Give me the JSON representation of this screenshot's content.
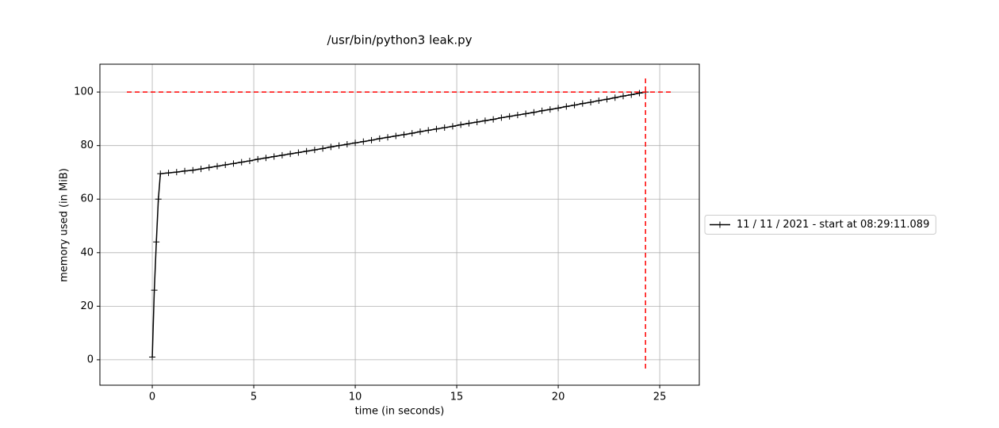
{
  "chart_data": {
    "type": "line",
    "title": "/usr/bin/python3 leak.py",
    "xlabel": "time (in seconds)",
    "ylabel": "memory used (in MiB)",
    "x": [
      0,
      0.1,
      0.2,
      0.3,
      0.4,
      0.8,
      1.2,
      1.6,
      2.0,
      2.4,
      2.8,
      3.2,
      3.6,
      4.0,
      4.4,
      4.8,
      5.2,
      5.6,
      6.0,
      6.4,
      6.8,
      7.2,
      7.6,
      8.0,
      8.4,
      8.8,
      9.2,
      9.6,
      10.0,
      10.4,
      10.8,
      11.2,
      11.6,
      12.0,
      12.4,
      12.8,
      13.2,
      13.6,
      14.0,
      14.4,
      14.8,
      15.2,
      15.6,
      16.0,
      16.4,
      16.8,
      17.2,
      17.6,
      18.0,
      18.4,
      18.8,
      19.2,
      19.6,
      20.0,
      20.4,
      20.8,
      21.2,
      21.6,
      22.0,
      22.4,
      22.8,
      23.2,
      23.6,
      24.0,
      24.3
    ],
    "series": [
      {
        "name": "11 / 11 / 2021 - start at 08:29:11.089",
        "color": "#000000",
        "values": [
          1,
          26,
          44,
          60,
          69.5,
          69.8,
          70.1,
          70.5,
          70.8,
          71.3,
          71.8,
          72.3,
          72.8,
          73.3,
          73.8,
          74.3,
          74.9,
          75.4,
          75.9,
          76.4,
          76.9,
          77.4,
          77.9,
          78.4,
          78.9,
          79.5,
          80.0,
          80.5,
          81.0,
          81.5,
          82.0,
          82.6,
          83.1,
          83.6,
          84.1,
          84.6,
          85.2,
          85.7,
          86.2,
          86.7,
          87.2,
          87.8,
          88.3,
          88.8,
          89.3,
          89.8,
          90.4,
          90.9,
          91.4,
          91.9,
          92.4,
          93.0,
          93.5,
          94.0,
          94.6,
          95.1,
          95.7,
          96.2,
          96.8,
          97.3,
          97.9,
          98.5,
          99.0,
          99.6,
          100.0
        ]
      }
    ],
    "peak": {
      "x": 24.3,
      "y": 100,
      "color": "#ff0000"
    },
    "xlim": [
      -2.58,
      26.95
    ],
    "xticks": [
      0,
      5,
      10,
      15,
      20,
      25
    ],
    "ylim": [
      -9.5,
      110.4
    ],
    "yticks": [
      0,
      20,
      40,
      60,
      80,
      100
    ],
    "grid": true,
    "legend": "right"
  }
}
